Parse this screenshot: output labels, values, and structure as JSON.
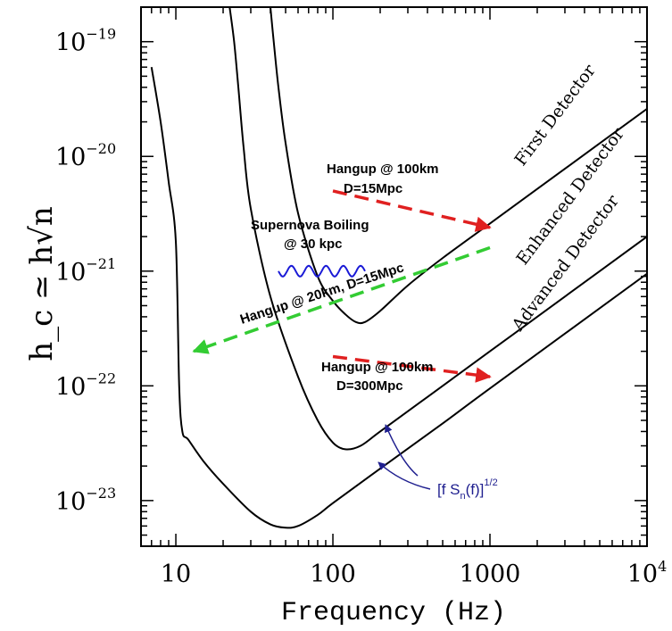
{
  "chart_data": {
    "type": "line",
    "title": "",
    "xlabel": "Frequency (Hz)",
    "ylabel": "h_c ≃ h√n",
    "x_scale": "log",
    "y_scale": "log",
    "xlim": [
      6,
      10000
    ],
    "ylim": [
      4e-24,
      2e-19
    ],
    "grid": false,
    "x_ticks": [
      {
        "value": 10,
        "label": "10"
      },
      {
        "value": 100,
        "label": "100"
      },
      {
        "value": 1000,
        "label": "1000"
      },
      {
        "value": 10000,
        "label": "10",
        "exp": "4"
      }
    ],
    "y_ticks": [
      {
        "value": 1e-19,
        "label": "10",
        "exp": "−19"
      },
      {
        "value": 1e-20,
        "label": "10",
        "exp": "−20"
      },
      {
        "value": 1e-21,
        "label": "10",
        "exp": "−21"
      },
      {
        "value": 1e-22,
        "label": "10",
        "exp": "−22"
      },
      {
        "value": 1e-23,
        "label": "10",
        "exp": "−23"
      }
    ],
    "series": [
      {
        "name": "First Detector",
        "color": "#000000",
        "x": [
          40,
          42,
          45,
          50,
          60,
          80,
          100,
          120,
          140,
          160,
          200,
          300,
          500,
          1000,
          2000,
          5000,
          10000
        ],
        "y": [
          2e-19,
          1e-19,
          4e-20,
          1.3e-20,
          3.2e-21,
          9e-22,
          5.5e-22,
          4.2e-22,
          3.6e-22,
          3.6e-22,
          4.5e-22,
          7.5e-22,
          1.3e-21,
          2.6e-21,
          5.2e-21,
          1.3e-20,
          2.6e-20
        ]
      },
      {
        "name": "Enhanced Detector",
        "color": "#000000",
        "x": [
          22,
          23.5,
          25,
          27,
          30,
          40,
          60,
          80,
          100,
          120,
          150,
          200,
          400,
          1000,
          2000,
          5000,
          10000
        ],
        "y": [
          2e-19,
          1e-19,
          4e-20,
          1.2e-20,
          3.5e-21,
          6e-22,
          1.2e-22,
          5e-23,
          3.2e-23,
          2.8e-23,
          3e-23,
          4e-23,
          8e-23,
          2e-22,
          4e-22,
          1e-21,
          2e-21
        ]
      },
      {
        "name": "Advanced Detector",
        "color": "#000000",
        "x": [
          7,
          8,
          9,
          10,
          10.5,
          11,
          12,
          15,
          20,
          30,
          40,
          50,
          60,
          80,
          100,
          200,
          500,
          1000,
          10000
        ],
        "y": [
          6e-20,
          2e-20,
          6e-21,
          1.8e-21,
          1e-22,
          4e-23,
          3.4e-23,
          2.2e-23,
          1.4e-23,
          8e-24,
          6.2e-24,
          5.8e-24,
          6e-24,
          7.5e-24,
          9.5e-24,
          1.9e-23,
          4.7e-23,
          9.5e-23,
          9.5e-22
        ]
      }
    ],
    "sources": [
      {
        "name": "Hangup @ 100km D=15Mpc",
        "color": "#e02020",
        "style": "dashed-arrow",
        "x": [
          100,
          1000
        ],
        "y": [
          5e-21,
          2.4e-21
        ]
      },
      {
        "name": "Hangup @ 20km, D=15Mpc",
        "color": "#33cc33",
        "style": "dashed-arrow",
        "x": [
          1000,
          13
        ],
        "y": [
          1.6e-21,
          2e-22
        ]
      },
      {
        "name": "Hangup @ 100km D=300Mpc",
        "color": "#e02020",
        "style": "dashed-arrow",
        "x": [
          100,
          1000
        ],
        "y": [
          1.8e-22,
          1.2e-22
        ]
      },
      {
        "name": "Supernova Boiling @ 30 kpc",
        "color": "#1a1ad6",
        "style": "wavy",
        "x": [
          45,
          160
        ],
        "y": [
          1e-21,
          1e-21
        ]
      }
    ],
    "curve_labels": [
      "First Detector",
      "Enhanced Detector",
      "Advanced Detector"
    ],
    "annotations": {
      "hangup1_line1": "Hangup @ 100km",
      "hangup1_line2": "D=15Mpc",
      "supernova_line1": "Supernova Boiling",
      "supernova_line2": "@ 30 kpc",
      "hangup2": "Hangup @ 20km, D=15Mpc",
      "hangup3_line1": "Hangup @ 100km",
      "hangup3_line2": "D=300Mpc",
      "noise_label": "[f S",
      "noise_sub": "n",
      "noise_mid": "(f)]",
      "noise_exp": "1/2"
    }
  }
}
